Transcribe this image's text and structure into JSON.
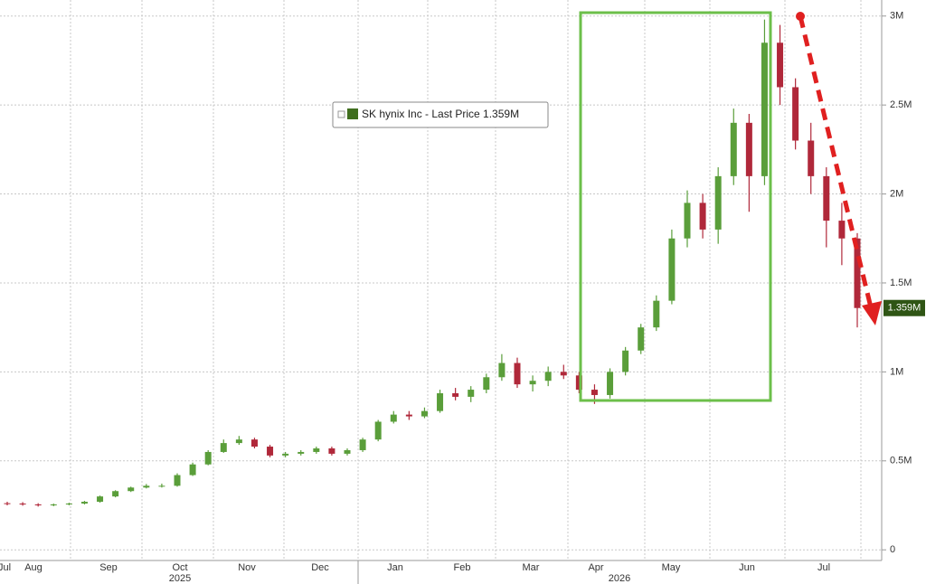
{
  "chart_data": {
    "type": "candlestick",
    "series": [
      {
        "name": "SK hynix Inc - Last Price 1.359M",
        "color_up": "#5a9e3a",
        "color_down": "#b0283a",
        "open": [
          0.262,
          0.26,
          0.255,
          0.25,
          0.255,
          0.26,
          0.27,
          0.3,
          0.33,
          0.35,
          0.36,
          0.36,
          0.42,
          0.48,
          0.55,
          0.6,
          0.62,
          0.58,
          0.53,
          0.54,
          0.55,
          0.57,
          0.54,
          0.56,
          0.62,
          0.72,
          0.76,
          0.75,
          0.78,
          0.88,
          0.86,
          0.9,
          0.97,
          1.05,
          0.93,
          0.95,
          1.0,
          0.98,
          0.9,
          0.87,
          1.0,
          1.12,
          1.25,
          1.4,
          1.75,
          1.95,
          1.8,
          2.1,
          2.4,
          2.1,
          2.85,
          2.6,
          2.3,
          2.1,
          1.85,
          1.75
        ],
        "high": [
          0.27,
          0.268,
          0.262,
          0.26,
          0.265,
          0.275,
          0.305,
          0.335,
          0.355,
          0.37,
          0.372,
          0.43,
          0.49,
          0.56,
          0.62,
          0.64,
          0.63,
          0.59,
          0.55,
          0.56,
          0.58,
          0.58,
          0.57,
          0.63,
          0.73,
          0.78,
          0.78,
          0.8,
          0.9,
          0.91,
          0.92,
          0.99,
          1.1,
          1.08,
          0.98,
          1.03,
          1.04,
          1.0,
          0.93,
          1.02,
          1.14,
          1.27,
          1.43,
          1.8,
          2.02,
          2.0,
          2.15,
          2.48,
          2.45,
          2.98,
          2.95,
          2.65,
          2.4,
          2.15,
          1.95,
          1.78
        ],
        "low": [
          0.25,
          0.248,
          0.243,
          0.245,
          0.25,
          0.255,
          0.265,
          0.295,
          0.325,
          0.345,
          0.35,
          0.355,
          0.415,
          0.475,
          0.545,
          0.59,
          0.57,
          0.52,
          0.52,
          0.53,
          0.54,
          0.53,
          0.53,
          0.55,
          0.61,
          0.71,
          0.73,
          0.74,
          0.77,
          0.84,
          0.83,
          0.88,
          0.95,
          0.91,
          0.89,
          0.92,
          0.96,
          0.88,
          0.82,
          0.85,
          0.98,
          1.1,
          1.23,
          1.38,
          1.7,
          1.75,
          1.72,
          2.05,
          1.9,
          2.05,
          2.5,
          2.25,
          2.0,
          1.7,
          1.6,
          1.25
        ],
        "close": [
          0.26,
          0.255,
          0.25,
          0.255,
          0.26,
          0.27,
          0.3,
          0.33,
          0.35,
          0.36,
          0.36,
          0.42,
          0.48,
          0.55,
          0.6,
          0.62,
          0.58,
          0.53,
          0.54,
          0.55,
          0.57,
          0.54,
          0.56,
          0.62,
          0.72,
          0.76,
          0.75,
          0.78,
          0.88,
          0.86,
          0.9,
          0.97,
          1.05,
          0.93,
          0.95,
          1.0,
          0.98,
          0.9,
          0.87,
          1.0,
          1.12,
          1.25,
          1.4,
          1.75,
          1.95,
          1.8,
          2.1,
          2.4,
          2.1,
          2.85,
          2.6,
          2.3,
          2.1,
          1.85,
          1.75,
          1.359
        ]
      }
    ],
    "x_labels": [
      "Jul",
      "Aug",
      "Sep",
      "Oct",
      "Nov",
      "Dec",
      "Jan",
      "Feb",
      "Mar",
      "Apr",
      "May",
      "Jun",
      "Jul"
    ],
    "years": [
      "2025",
      "2026"
    ],
    "ylim": [
      -0.06,
      3.08
    ],
    "yticks": [
      0,
      {
        "value": 0.5,
        "label": "0.5M"
      },
      {
        "value": 1,
        "label": "1M"
      },
      {
        "value": 1.5,
        "label": "1.5M"
      },
      {
        "value": 2,
        "label": "2M"
      },
      {
        "value": 2.5,
        "label": "2.5M"
      },
      {
        "value": 3,
        "label": "3M"
      }
    ],
    "last_price": {
      "value": 1.359,
      "label": "1.359M"
    },
    "grid": true
  }
}
